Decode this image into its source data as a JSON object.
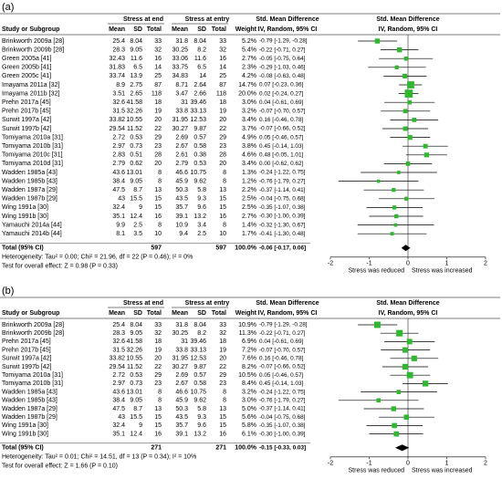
{
  "chart_data": [
    {
      "type": "forest",
      "panel_label": "(a)",
      "color": "#2eb82e",
      "total_color": "#000000",
      "header": {
        "group_end": "Stress at end",
        "group_entry": "Stress at entry",
        "effect": "Std. Mean Difference",
        "plot": "Std. Mean Difference",
        "study": "Study or Subgroup",
        "columns": [
          "Mean",
          "SD",
          "Total",
          "Mean",
          "SD",
          "Total",
          "Weight"
        ],
        "effect_method": "IV, Random, 95% CI",
        "plot_method": "IV, Random, 95% CI"
      },
      "categories": [
        "Brinkworth 2009a [28]",
        "Brinkworth 2009b [28]",
        "Green 2005a [41]",
        "Green 2005b [41]",
        "Green 2005c [41]",
        "Imayama 2011a [32]",
        "Imayama 2011b [32]",
        "Prehn 2017a [45]",
        "Prehn 2017b [45]",
        "Surwit 1997a [42]",
        "Surwit 1997b [42]",
        "Tomiyama 2010a [31]",
        "Tomiyama 2010b [31]",
        "Tomiyama 2010c [31]",
        "Tomiyama 2010d [31]",
        "Wadden 1985a [43]",
        "Wadden 1985b [43]",
        "Wadden 1987a [29]",
        "Wadden 1987b [29]",
        "Wing 1991a [30]",
        "Wing 1991b [30]",
        "Yamauchi 2014a [44]",
        "Yamauchi 2014b [44]"
      ],
      "exp_mean": [
        25.4,
        28.3,
        32.43,
        31.83,
        33.74,
        8.9,
        3.51,
        32.6,
        31.5,
        33.82,
        29.54,
        2.72,
        2.97,
        2.83,
        2.79,
        43.6,
        38.4,
        47.5,
        43,
        32.4,
        35.1,
        9.9,
        8.1
      ],
      "exp_sd": [
        8.04,
        9.05,
        11.6,
        6.5,
        13.9,
        2.75,
        2.65,
        41.58,
        32.26,
        10.55,
        11.52,
        0.53,
        0.73,
        0.51,
        0.62,
        13.01,
        9.05,
        8.7,
        15.5,
        9,
        12.4,
        2.5,
        3.5
      ],
      "exp_n": [
        33,
        32,
        16,
        14,
        25,
        87,
        118,
        18,
        19,
        20,
        22,
        29,
        23,
        28,
        20,
        8,
        8,
        13,
        15,
        15,
        16,
        8,
        10
      ],
      "ctl_mean": [
        31.8,
        30.25,
        33.06,
        33.75,
        34.83,
        8.71,
        3.47,
        31,
        33.8,
        31.95,
        30.27,
        2.69,
        2.67,
        2.61,
        2.79,
        46.6,
        45.9,
        50.3,
        43.5,
        35.7,
        39.1,
        10.9,
        9.4
      ],
      "ctl_sd": [
        8.04,
        8.2,
        11.6,
        6.5,
        14,
        2.64,
        2.66,
        39.46,
        33.13,
        12.53,
        9.87,
        0.57,
        0.58,
        0.38,
        0.53,
        10.75,
        9.62,
        5.8,
        9.3,
        9.6,
        13.2,
        3.4,
        2.5
      ],
      "ctl_n": [
        33,
        32,
        16,
        14,
        25,
        87,
        118,
        18,
        19,
        20,
        22,
        29,
        23,
        28,
        20,
        8,
        8,
        13,
        15,
        15,
        16,
        8,
        10
      ],
      "weight": [
        5.2,
        5.4,
        2.7,
        2.3,
        4.2,
        14.7,
        20.0,
        3.0,
        3.2,
        3.4,
        3.7,
        4.9,
        3.8,
        4.6,
        3.4,
        1.3,
        1.2,
        2.2,
        2.5,
        2.5,
        2.7,
        1.4,
        1.7
      ],
      "weight_labels": [
        "5.2%",
        "5.4%",
        "2.7%",
        "2.3%",
        "4.2%",
        "14.7%",
        "20.0%",
        "3.0%",
        "3.2%",
        "3.4%",
        "3.7%",
        "4.9%",
        "3.8%",
        "4.6%",
        "3.4%",
        "1.3%",
        "1.2%",
        "2.2%",
        "2.5%",
        "2.5%",
        "2.7%",
        "1.4%",
        "1.7%"
      ],
      "values": [
        -0.79,
        -0.22,
        -0.05,
        -0.29,
        -0.08,
        0.07,
        0.02,
        0.04,
        -0.07,
        0.16,
        -0.07,
        0.05,
        0.45,
        0.48,
        0.0,
        -0.24,
        -0.76,
        -0.37,
        -0.04,
        -0.35,
        -0.3,
        -0.32,
        -0.41
      ],
      "ci_low": [
        -1.29,
        -0.71,
        -0.75,
        -1.03,
        -0.63,
        -0.23,
        -0.24,
        -0.61,
        -0.7,
        -0.46,
        -0.66,
        -0.46,
        -0.14,
        -0.05,
        -0.62,
        -1.22,
        -1.79,
        -1.14,
        -0.75,
        -1.07,
        -1.0,
        -1.3,
        -1.3
      ],
      "ci_high": [
        -0.28,
        0.27,
        0.64,
        0.46,
        0.48,
        0.36,
        0.27,
        0.69,
        0.57,
        0.78,
        0.52,
        0.57,
        1.03,
        1.01,
        0.62,
        0.75,
        0.27,
        0.41,
        0.68,
        0.38,
        0.39,
        0.67,
        0.48
      ],
      "value_labels": [
        "-0.79 [-1.29, -0.28]",
        "-0.22 [-0.71, 0.27]",
        "-0.05 [-0.75, 0.64]",
        "-0.29 [-1.03, 0.46]",
        "-0.08 [-0.63, 0.48]",
        "0.07 [-0.23, 0.36]",
        "0.02 [-0.24, 0.27]",
        "0.04 [-0.61, 0.69]",
        "-0.07 [-0.70, 0.57]",
        "0.16 [-0.46, 0.78]",
        "-0.07 [-0.66, 0.52]",
        "0.05 [-0.46, 0.57]",
        "0.45 [-0.14, 1.03]",
        "0.48 [-0.05, 1.01]",
        "0.00 [-0.62, 0.62]",
        "-0.24 [-1.22, 0.75]",
        "-0.76 [-1.79, 0.27]",
        "-0.37 [-1.14, 0.41]",
        "-0.04 [-0.75, 0.68]",
        "-0.35 [-1.07, 0.38]",
        "-0.30 [-1.00, 0.39]",
        "-0.32 [-1.30, 0.67]",
        "-0.41 [-1.30, 0.48]"
      ],
      "total": {
        "label": "Total (95% CI)",
        "exp_n": 597,
        "ctl_n": 597,
        "weight": 100.0,
        "weight_label": "100.0%",
        "value": -0.06,
        "ci_low": -0.17,
        "ci_high": 0.06,
        "value_label": "-0.06 [-0.17, 0.06]"
      },
      "heterogeneity": "Heterogeneity: Tau² = 0.00; Chi² = 21.96, df = 22 (P = 0.46); I² = 0%",
      "overall_effect": "Test for overall effect: Z = 0.98 (P = 0.33)",
      "xlim": [
        -2,
        2
      ],
      "xticks": [
        -2,
        -1,
        0,
        1,
        2
      ],
      "x_label_left": "Stress was reduced",
      "x_label_right": "Stress was increased"
    },
    {
      "type": "forest",
      "panel_label": "(b)",
      "color": "#2eb82e",
      "total_color": "#000000",
      "header": {
        "group_end": "Stress at end",
        "group_entry": "Stress at entry",
        "effect": "Std. Mean Difference",
        "plot": "Std. Mean Difference",
        "study": "Study or Subgroup",
        "columns": [
          "Mean",
          "SD",
          "Total",
          "Mean",
          "SD",
          "Total",
          "Weight"
        ],
        "effect_method": "IV, Random, 95% CI",
        "plot_method": "IV, Random, 95% CI"
      },
      "categories": [
        "Brinkworth 2009a [28]",
        "Brinkworth 2009b [28]",
        "Prehn 2017a [45]",
        "Prehn 2017b [45]",
        "Surwit 1997a [42]",
        "Surwit 1997b [42]",
        "Tomiyama 2010a [31]",
        "Tomiyama 2010b [31]",
        "Wadden 1985a [43]",
        "Wadden 1985b [43]",
        "Wadden 1987a [29]",
        "Wadden 1987b [29]",
        "Wing 1991a [30]",
        "Wing 1991b [30]"
      ],
      "exp_mean": [
        25.4,
        28.3,
        32.6,
        31.5,
        33.82,
        29.54,
        2.72,
        2.97,
        43.6,
        38.4,
        47.5,
        43,
        32.4,
        35.1
      ],
      "exp_sd": [
        8.04,
        9.05,
        41.58,
        32.26,
        10.55,
        11.52,
        0.53,
        0.73,
        13.01,
        9.05,
        8.7,
        15.5,
        9,
        12.4
      ],
      "exp_n": [
        33,
        32,
        18,
        19,
        20,
        22,
        29,
        23,
        8,
        8,
        13,
        15,
        15,
        16
      ],
      "ctl_mean": [
        31.8,
        30.25,
        31,
        33.8,
        31.95,
        30.27,
        2.69,
        2.67,
        46.6,
        45.9,
        50.3,
        43.5,
        35.7,
        39.1
      ],
      "ctl_sd": [
        8.04,
        8.2,
        39.46,
        33.13,
        12.53,
        9.87,
        0.57,
        0.58,
        10.75,
        9.62,
        5.8,
        9.3,
        9.6,
        13.2
      ],
      "ctl_n": [
        33,
        32,
        18,
        19,
        20,
        22,
        29,
        23,
        8,
        8,
        13,
        15,
        15,
        16
      ],
      "weight": [
        10.9,
        11.3,
        6.9,
        7.2,
        7.6,
        8.2,
        10.5,
        8.4,
        3.2,
        3.0,
        5.0,
        5.6,
        5.8,
        6.1
      ],
      "weight_labels": [
        "10.9%",
        "11.3%",
        "6.9%",
        "7.2%",
        "7.6%",
        "8.2%",
        "10.5%",
        "8.4%",
        "3.2%",
        "3.0%",
        "5.0%",
        "5.6%",
        "5.8%",
        "6.1%"
      ],
      "values": [
        -0.79,
        -0.22,
        0.04,
        -0.07,
        0.16,
        -0.07,
        0.05,
        0.45,
        -0.24,
        -0.76,
        -0.37,
        -0.04,
        -0.35,
        -0.3
      ],
      "ci_low": [
        -1.29,
        -0.71,
        -0.61,
        -0.7,
        -0.46,
        -0.66,
        -0.46,
        -0.14,
        -1.22,
        -1.79,
        -1.14,
        -0.75,
        -1.07,
        -1.0
      ],
      "ci_high": [
        -0.28,
        0.27,
        0.69,
        0.57,
        0.78,
        0.52,
        0.57,
        1.03,
        0.75,
        0.27,
        0.41,
        0.68,
        0.38,
        0.39
      ],
      "value_labels": [
        "-0.79 [-1.29, -0.28]",
        "-0.22 [-0.71, 0.27]",
        "0.04 [-0.61, 0.69]",
        "-0.07 [-0.70, 0.57]",
        "0.16 [-0.46, 0.78]",
        "-0.07 [-0.66, 0.52]",
        "0.05 [-0.46, 0.57]",
        "0.45 [-0.14, 1.03]",
        "-0.24 [-1.22, 0.75]",
        "-0.76 [-1.79, 0.27]",
        "-0.37 [-1.14, 0.41]",
        "-0.04 [-0.75, 0.68]",
        "-0.35 [-1.07, 0.38]",
        "-0.30 [-1.00, 0.39]"
      ],
      "total": {
        "label": "Total (95% CI)",
        "exp_n": 271,
        "ctl_n": 271,
        "weight": 100.0,
        "weight_label": "100.0%",
        "value": -0.15,
        "ci_low": -0.33,
        "ci_high": 0.03,
        "value_label": "-0.15 [-0.33, 0.03]"
      },
      "heterogeneity": "Heterogeneity: Tau² = 0.01; Chi² = 14.51, df = 13 (P = 0.34); I² = 10%",
      "overall_effect": "Test for overall effect: Z = 1.66 (P = 0.10)",
      "xlim": [
        -2,
        2
      ],
      "xticks": [
        -2,
        -1,
        0,
        1,
        2
      ],
      "x_label_left": "Stress was reduced",
      "x_label_right": "Stress was increased"
    }
  ]
}
